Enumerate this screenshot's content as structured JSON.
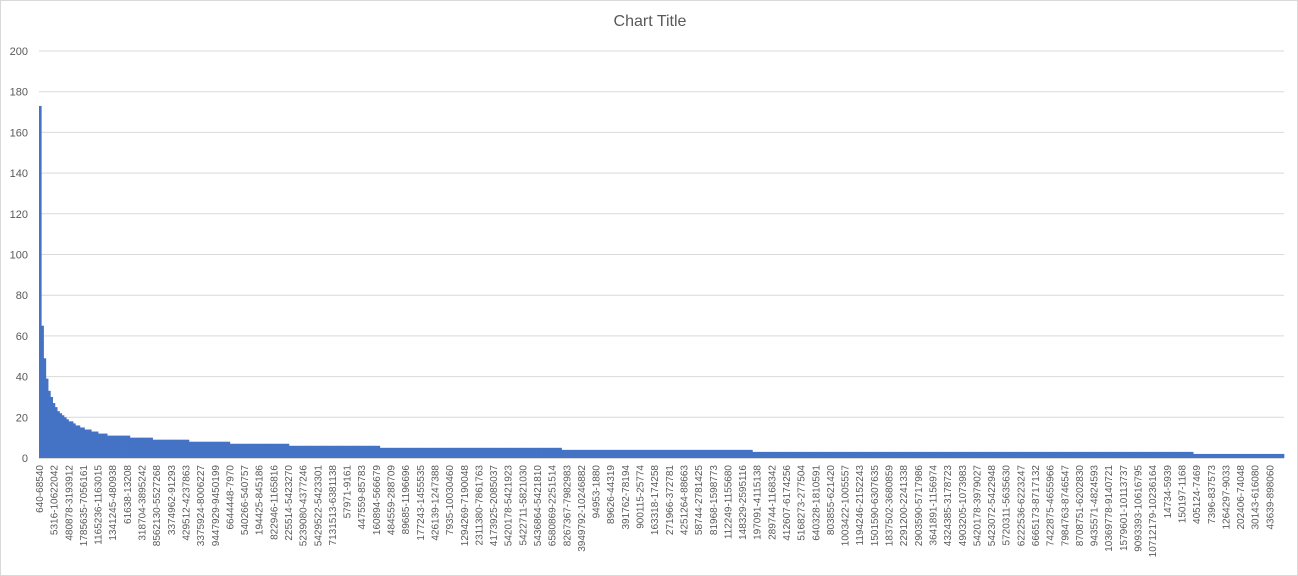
{
  "chart_data": {
    "type": "bar",
    "title": "Chart Title",
    "xlabel": "",
    "ylabel": "",
    "ylim": [
      0,
      200
    ],
    "yticks": [
      0,
      20,
      40,
      60,
      80,
      100,
      120,
      140,
      160,
      180,
      200
    ],
    "grid": true,
    "legend": "none",
    "bar_color": "#4472c4",
    "num_bars": 420,
    "head_values": [
      173,
      65,
      49,
      39,
      33,
      30,
      27,
      25,
      23,
      22,
      21,
      20,
      19,
      18,
      18,
      17,
      16,
      16,
      15,
      15,
      14,
      14,
      14,
      13,
      13,
      13,
      12,
      12,
      12,
      12,
      11,
      11,
      11,
      11
    ],
    "plateaus": [
      {
        "value": 11,
        "count": 6
      },
      {
        "value": 10,
        "count": 10
      },
      {
        "value": 9,
        "count": 16
      },
      {
        "value": 8,
        "count": 18
      },
      {
        "value": 7,
        "count": 26
      },
      {
        "value": 6,
        "count": 40
      },
      {
        "value": 5,
        "count": 80
      },
      {
        "value": 4,
        "count": 84
      },
      {
        "value": 3,
        "count": 194
      }
    ],
    "tail": {
      "value": 2,
      "count": 40
    },
    "category_labels": [
      "640-68540",
      "5316-10622042",
      "480878-3193912",
      "1785635-7056161",
      "1165236-1163015",
      "1341245-480938",
      "61638-13208",
      "318704-3895242",
      "8562130-5527268",
      "3374962-91293",
      "429512-4237863",
      "3375924-8006227",
      "9447929-9450199",
      "6644448-7970",
      "540266-540757",
      "194425-845186",
      "822946-1165816",
      "225514-5423270",
      "5239080-4377246",
      "5429522-5423301",
      "7131513-6381138",
      "57971-9161",
      "447559-85783",
      "160894-566679",
      "484559-288709",
      "89685-1196696",
      "177243-1455535",
      "426139-1247388",
      "7935-10030460",
      "1294269-7190048",
      "2311380-7861763",
      "4173925-2085037",
      "5420178-5421923",
      "5422711-5821030",
      "5436864-5421810",
      "6580869-2251514",
      "8267367-7982983",
      "3949792-10246882",
      "94953-1880",
      "89626-44319",
      "391762-78194",
      "900115-25774",
      "163318-174258",
      "271966-372781",
      "4251264-88663",
      "58744-2781425",
      "81968-1598773",
      "112249-1155680",
      "148329-2595116",
      "197091-4115138",
      "289744-1168342",
      "412607-6174256",
      "5168273-277504",
      "640328-1810591",
      "803855-621420",
      "1003422-1005557",
      "1194246-2152243",
      "1501590-6307635",
      "1837502-3680859",
      "2291200-2241338",
      "2903590-5717986",
      "3641891-1156974",
      "4324385-3178723",
      "4903205-1073983",
      "5420178-3979027",
      "5423072-5422948",
      "5720311-5635630",
      "6222536-6223247",
      "6665173-8717132",
      "7422875-4655966",
      "7984763-8746547",
      "8708751-6202830",
      "9435571-4824593",
      "10369778-9140721",
      "1579601-10113737",
      "9093393-10616795",
      "10712179-10236164",
      "14734-5939",
      "150197-1168",
      "405124-7469",
      "7396-837573",
      "1264297-9033",
      "202406-74048",
      "30143-616080",
      "43639-898060"
    ]
  }
}
